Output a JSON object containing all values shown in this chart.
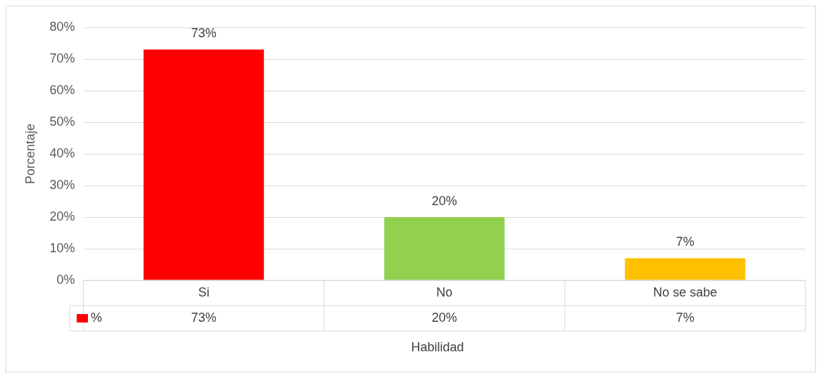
{
  "chart_data": {
    "type": "bar",
    "xlabel": "Habilidad",
    "ylabel": "Porcentaje",
    "categories": [
      "Si",
      "No",
      "No se sabe"
    ],
    "series": [
      {
        "name": "%",
        "values": [
          73,
          20,
          7
        ],
        "colors": [
          "#ff0000",
          "#92d050",
          "#ffc000"
        ],
        "value_labels": [
          "73%",
          "20%",
          "7%"
        ]
      }
    ],
    "ylim": [
      0,
      80
    ],
    "yticks": [
      {
        "value": 0,
        "label": "0%"
      },
      {
        "value": 10,
        "label": "10%"
      },
      {
        "value": 20,
        "label": "20%"
      },
      {
        "value": 30,
        "label": "30%"
      },
      {
        "value": 40,
        "label": "40%"
      },
      {
        "value": 50,
        "label": "50%"
      },
      {
        "value": 60,
        "label": "60%"
      },
      {
        "value": 70,
        "label": "70%"
      },
      {
        "value": 80,
        "label": "80%"
      }
    ],
    "grid": "y",
    "legend": "bottom"
  }
}
